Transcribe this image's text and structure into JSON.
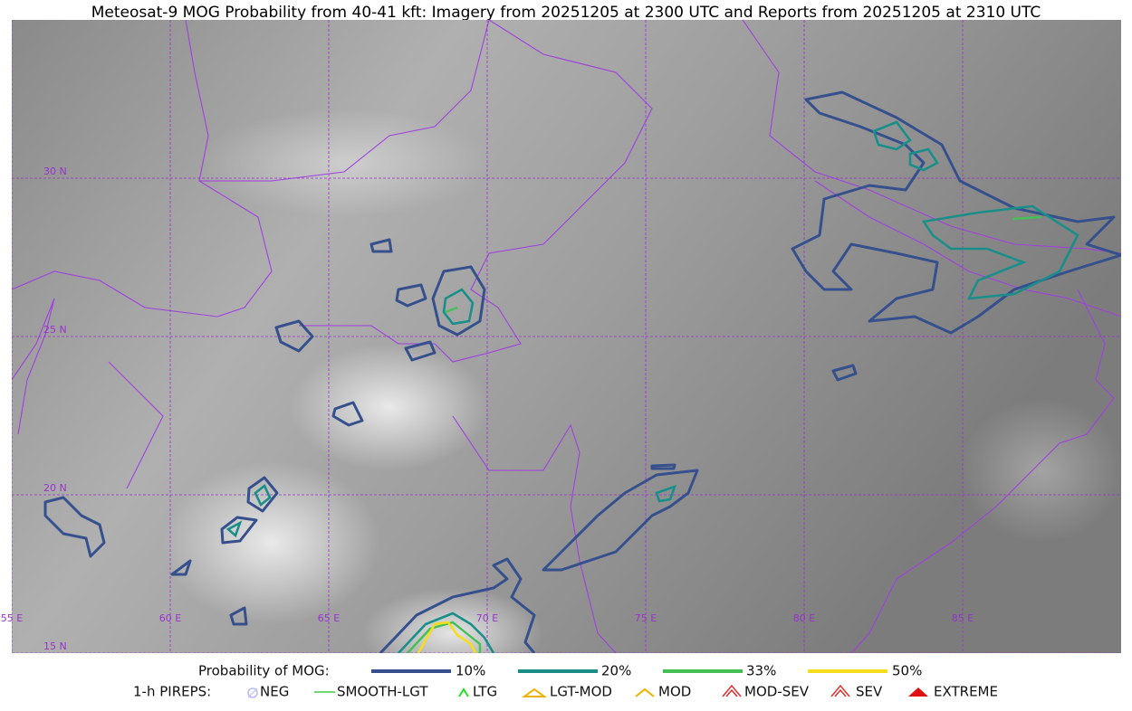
{
  "title": "Meteosat-9 MOG Probability from 40-41 kft: Imagery from 20251205 at 2300 UTC and Reports from 20251205 at 2310 UTC",
  "map": {
    "lat_labels": [
      "30 N",
      "25 N",
      "20 N",
      "15 N"
    ],
    "lon_labels": [
      "55 E",
      "60 E",
      "65 E",
      "70 E",
      "75 E",
      "80 E",
      "85 E"
    ]
  },
  "legend": {
    "probability": {
      "title": "Probability of MOG:",
      "levels": [
        "10%",
        "20%",
        "33%",
        "50%"
      ]
    },
    "pireps": {
      "title": "1-h PIREPS:",
      "items": [
        "NEG",
        "SMOOTH-LGT",
        "LTG",
        "LGT-MOD",
        "MOD",
        "MOD-SEV",
        "SEV",
        "EXTREME"
      ]
    }
  }
}
